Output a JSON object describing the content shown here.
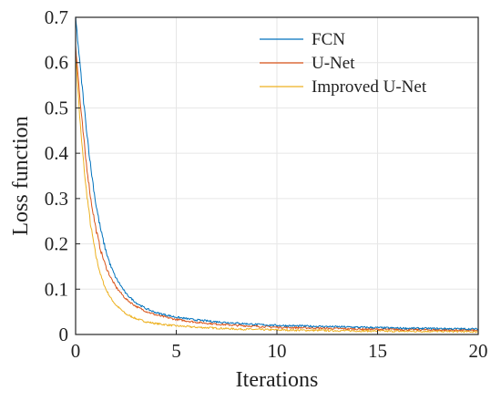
{
  "chart_data": {
    "type": "line",
    "xlabel": "Iterations",
    "ylabel": "Loss function",
    "xlim": [
      0,
      20
    ],
    "ylim": [
      0,
      0.7
    ],
    "xticks": [
      0,
      5,
      10,
      15,
      20
    ],
    "yticks": [
      0,
      0.1,
      0.2,
      0.3,
      0.4,
      0.5,
      0.6,
      0.7
    ],
    "xtick_labels": [
      "0",
      "5",
      "10",
      "15",
      "20"
    ],
    "ytick_labels": [
      "0",
      "0.1",
      "0.2",
      "0.3",
      "0.4",
      "0.5",
      "0.6",
      "0.7"
    ],
    "grid": true,
    "legend_position": "top-right",
    "series": [
      {
        "name": "FCN",
        "color": "#0072BD",
        "x": [
          0,
          0.25,
          0.5,
          0.75,
          1,
          1.25,
          1.5,
          1.75,
          2,
          2.5,
          3,
          3.5,
          4,
          5,
          6,
          7,
          8,
          9,
          10,
          12,
          14,
          16,
          18,
          20
        ],
        "y": [
          0.7,
          0.58,
          0.47,
          0.37,
          0.29,
          0.23,
          0.185,
          0.15,
          0.125,
          0.09,
          0.07,
          0.057,
          0.048,
          0.038,
          0.032,
          0.028,
          0.025,
          0.022,
          0.02,
          0.018,
          0.016,
          0.014,
          0.013,
          0.012
        ]
      },
      {
        "name": "U-Net",
        "color": "#D95319",
        "x": [
          0,
          0.25,
          0.5,
          0.75,
          1,
          1.25,
          1.5,
          1.75,
          2,
          2.5,
          3,
          3.5,
          4,
          5,
          6,
          7,
          8,
          9,
          10,
          12,
          14,
          16,
          18,
          20
        ],
        "y": [
          0.64,
          0.5,
          0.39,
          0.3,
          0.235,
          0.185,
          0.15,
          0.125,
          0.105,
          0.078,
          0.062,
          0.051,
          0.043,
          0.033,
          0.027,
          0.023,
          0.02,
          0.018,
          0.016,
          0.014,
          0.012,
          0.011,
          0.01,
          0.009
        ]
      },
      {
        "name": "Improved U-Net",
        "color": "#EDB120",
        "x": [
          0,
          0.25,
          0.5,
          0.75,
          1,
          1.25,
          1.5,
          1.75,
          2,
          2.5,
          3,
          3.5,
          4,
          5,
          6,
          7,
          8,
          9,
          10,
          12,
          14,
          16,
          18,
          20
        ],
        "y": [
          0.62,
          0.45,
          0.33,
          0.24,
          0.175,
          0.13,
          0.1,
          0.08,
          0.065,
          0.045,
          0.035,
          0.028,
          0.024,
          0.019,
          0.016,
          0.014,
          0.012,
          0.011,
          0.01,
          0.009,
          0.008,
          0.007,
          0.007,
          0.006
        ]
      }
    ]
  }
}
